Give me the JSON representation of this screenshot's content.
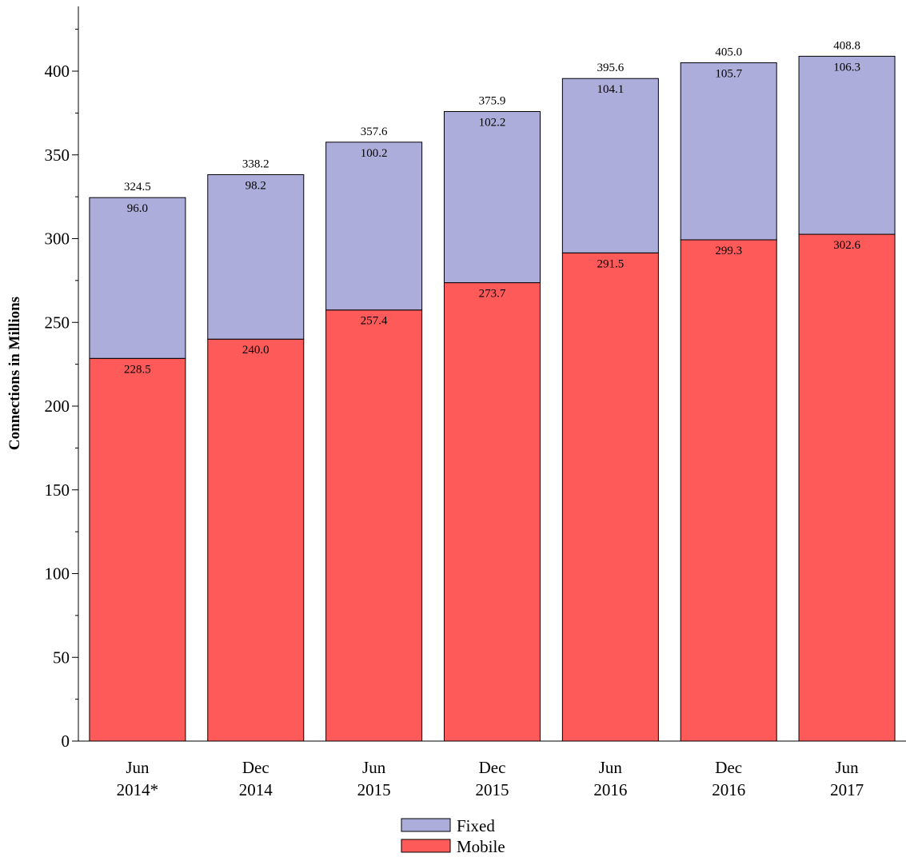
{
  "chart_data": {
    "type": "bar",
    "stacked": true,
    "categories": [
      [
        "Jun",
        "2014*"
      ],
      [
        "Dec",
        "2014"
      ],
      [
        "Jun",
        "2015"
      ],
      [
        "Dec",
        "2015"
      ],
      [
        "Jun",
        "2016"
      ],
      [
        "Dec",
        "2016"
      ],
      [
        "Jun",
        "2017"
      ]
    ],
    "series": [
      {
        "name": "Mobile",
        "color": "#ff5a5a",
        "values": [
          228.5,
          240.0,
          257.4,
          273.7,
          291.5,
          299.3,
          302.6
        ],
        "labels": [
          "228.5",
          "240.0",
          "257.4",
          "273.7",
          "291.5",
          "299.3",
          "302.6"
        ]
      },
      {
        "name": "Fixed",
        "color": "#adaddb",
        "values": [
          96.0,
          98.2,
          100.2,
          102.2,
          104.1,
          105.7,
          106.3
        ],
        "labels": [
          "96.0",
          "98.2",
          "100.2",
          "102.2",
          "104.1",
          "105.7",
          "106.3"
        ]
      }
    ],
    "totals": [
      324.5,
      338.2,
      357.6,
      375.9,
      395.6,
      405.0,
      408.8
    ],
    "total_labels": [
      "324.5",
      "338.2",
      "357.6",
      "375.9",
      "395.6",
      "405.0",
      "408.8"
    ],
    "ylabel": "Connections in Millions",
    "xlabel": "",
    "ylim": [
      0,
      440
    ],
    "yticks": [
      0,
      50,
      100,
      150,
      200,
      250,
      300,
      350,
      400
    ],
    "grid": false,
    "legend_position": "bottom-center",
    "legend_order": [
      "Fixed",
      "Mobile"
    ]
  }
}
